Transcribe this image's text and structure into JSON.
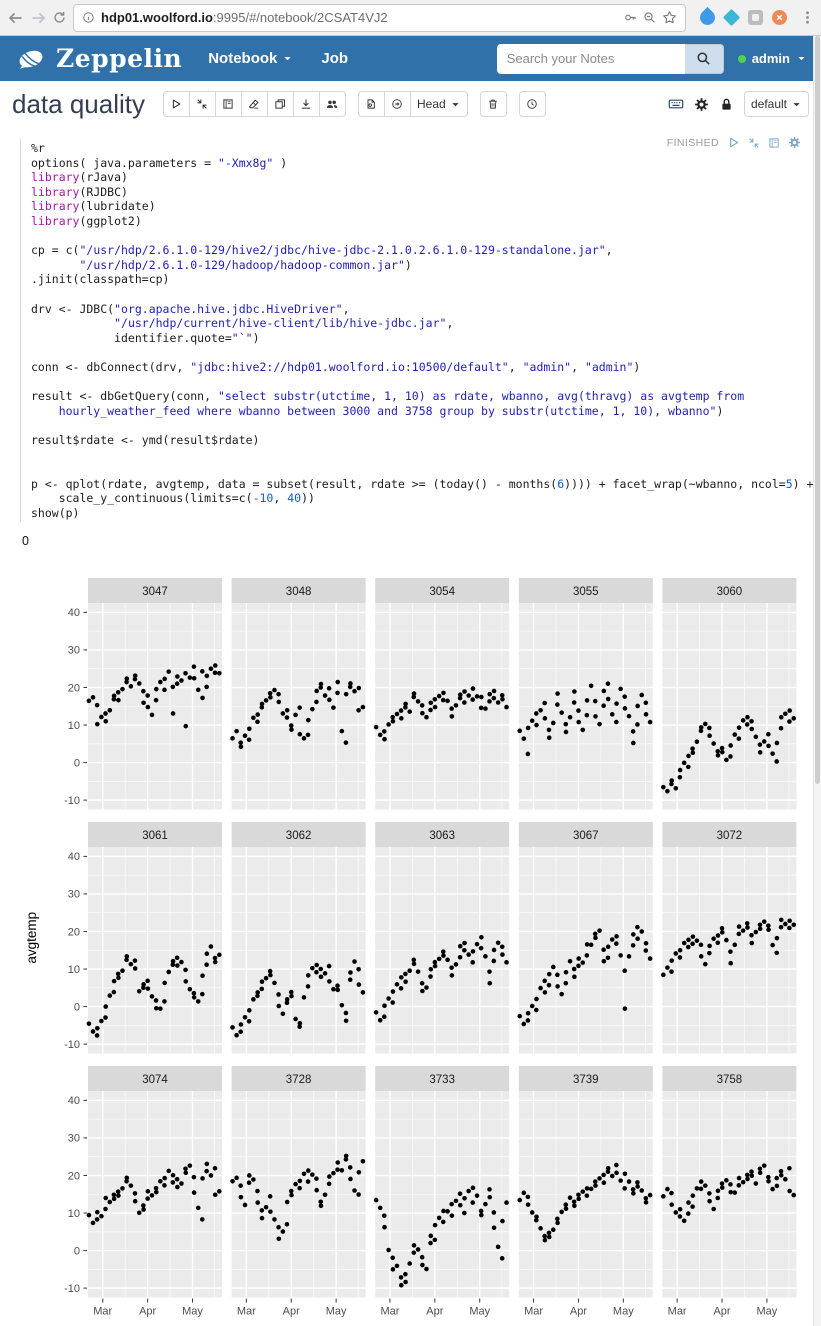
{
  "browser": {
    "url_host": "hdp01.woolford.io",
    "url_rest": ":9995/#/notebook/2CSAT4VJ2"
  },
  "navbar": {
    "brand": "Zeppelin",
    "menus": [
      {
        "label": "Notebook"
      },
      {
        "label": "Job"
      }
    ],
    "search_placeholder": "Search your Notes",
    "user": "admin",
    "color": "#3071a9"
  },
  "note": {
    "title": "data quality",
    "revision": "Head",
    "interpreter": "default"
  },
  "paragraph": {
    "status": "FINISHED",
    "result_prefix": "0",
    "token_colors": {
      "pl": "#1c1c1c",
      "kw": "#a617a6",
      "st": "#1f1fb4",
      "nu": "#0b5bd3"
    },
    "code_lines": [
      [
        [
          "pl",
          "%r"
        ]
      ],
      [
        [
          "pl",
          "options( java.parameters = "
        ],
        [
          "st",
          "\"-Xmx8g\""
        ],
        [
          "pl",
          " )"
        ]
      ],
      [
        [
          "kw",
          "library"
        ],
        [
          "pl",
          "(rJava)"
        ]
      ],
      [
        [
          "kw",
          "library"
        ],
        [
          "pl",
          "(RJDBC)"
        ]
      ],
      [
        [
          "kw",
          "library"
        ],
        [
          "pl",
          "(lubridate)"
        ]
      ],
      [
        [
          "kw",
          "library"
        ],
        [
          "pl",
          "(ggplot2)"
        ]
      ],
      [],
      [
        [
          "pl",
          "cp = c("
        ],
        [
          "st",
          "\"/usr/hdp/2.6.1.0-129/hive2/jdbc/hive-jdbc-2.1.0.2.6.1.0-129-standalone.jar\""
        ],
        [
          "pl",
          ","
        ]
      ],
      [
        [
          "pl",
          "       "
        ],
        [
          "st",
          "\"/usr/hdp/2.6.1.0-129/hadoop/hadoop-common.jar\""
        ],
        [
          "pl",
          ")"
        ]
      ],
      [
        [
          "pl",
          ".jinit(classpath=cp)"
        ]
      ],
      [],
      [
        [
          "pl",
          "drv <- JDBC("
        ],
        [
          "st",
          "\"org.apache.hive.jdbc.HiveDriver\""
        ],
        [
          "pl",
          ","
        ]
      ],
      [
        [
          "pl",
          "            "
        ],
        [
          "st",
          "\"/usr/hdp/current/hive-client/lib/hive-jdbc.jar\""
        ],
        [
          "pl",
          ","
        ]
      ],
      [
        [
          "pl",
          "            identifier.quote="
        ],
        [
          "st",
          "\"`\""
        ],
        [
          "pl",
          ")"
        ]
      ],
      [],
      [
        [
          "pl",
          "conn <- dbConnect(drv, "
        ],
        [
          "st",
          "\"jdbc:hive2://hdp01.woolford.io:10500/default\""
        ],
        [
          "pl",
          ", "
        ],
        [
          "st",
          "\"admin\""
        ],
        [
          "pl",
          ", "
        ],
        [
          "st",
          "\"admin\""
        ],
        [
          "pl",
          ")"
        ]
      ],
      [],
      [
        [
          "pl",
          "result <- dbGetQuery(conn, "
        ],
        [
          "st",
          "\"select substr(utctime, 1, 10) as rdate, wbanno, avg(thravg) as avgtemp from"
        ]
      ],
      [
        [
          "st",
          "    hourly_weather_feed where wbanno between 3000 and 3758 group by substr(utctime, 1, 10), wbanno\""
        ],
        [
          "pl",
          ")"
        ]
      ],
      [],
      [
        [
          "pl",
          "result$rdate <- ymd(result$rdate)"
        ]
      ],
      [],
      [],
      [
        [
          "pl",
          "p <- qplot(rdate, avgtemp, data = subset(result, rdate >= (today() - months("
        ],
        [
          "nu",
          "6"
        ],
        [
          "pl",
          ")))) + facet_wrap(~wbanno, ncol="
        ],
        [
          "nu",
          "5"
        ],
        [
          "pl",
          ") +"
        ]
      ],
      [
        [
          "pl",
          "    scale_y_continuous(limits=c("
        ],
        [
          "nu",
          "-10"
        ],
        [
          "pl",
          ", "
        ],
        [
          "nu",
          "40"
        ],
        [
          "pl",
          "))"
        ]
      ],
      [
        [
          "pl",
          "show(p)"
        ]
      ]
    ]
  },
  "chart_data": {
    "type": "scatter",
    "facet_by": "wbanno",
    "ncol": 5,
    "ylabel": "avgtemp",
    "ylim": [
      -10,
      40
    ],
    "yticks": [
      40,
      30,
      20,
      10,
      0,
      -10
    ],
    "yticks_minor": [
      35,
      25,
      15,
      5,
      -5
    ],
    "xticks": [
      "Mar",
      "Apr",
      "May"
    ],
    "xtick_pos_pct": [
      11,
      44.5,
      78
    ],
    "xtick_minor_pct": [
      27.75,
      61.25,
      94.5
    ],
    "x_pct_range": [
      2,
      98
    ],
    "grid": true,
    "point_color": "#000000",
    "panel_bg": "#ebebeb",
    "strip_bg": "#d9d9d9",
    "axis_text_color": "#4d4d4d",
    "facets": [
      {
        "label": "3047",
        "y": [
          16,
          17,
          15,
          10,
          12,
          13,
          11,
          14,
          17,
          18,
          19,
          17,
          20,
          21,
          22,
          20,
          22,
          23,
          21,
          19,
          16,
          18,
          15,
          13,
          17,
          20,
          21,
          19,
          22,
          24,
          20,
          13,
          21,
          23,
          22,
          24,
          10,
          23,
          26,
          22,
          19,
          24,
          17,
          20,
          23,
          25,
          24,
          26,
          24
        ]
      },
      {
        "label": "3048",
        "y": [
          6,
          8,
          5,
          4,
          7,
          6,
          9,
          12,
          11,
          13,
          15,
          16,
          17,
          18,
          17,
          19,
          18,
          16,
          13,
          12,
          14,
          10,
          9,
          13,
          15,
          8,
          6,
          7,
          11,
          14,
          16,
          19,
          20,
          21,
          18,
          20,
          17,
          15,
          19,
          21,
          8,
          5,
          18,
          20,
          21,
          19,
          14,
          20,
          15
        ]
      },
      {
        "label": "3054",
        "y": [
          9,
          7,
          8,
          6,
          10,
          12,
          11,
          13,
          14,
          12,
          15,
          16,
          14,
          17,
          18,
          16,
          15,
          13,
          12,
          14,
          16,
          17,
          15,
          18,
          17,
          19,
          16,
          14,
          12,
          15,
          17,
          18,
          16,
          19,
          18,
          17,
          20,
          18,
          15,
          17,
          14,
          16,
          18,
          17,
          19,
          16,
          18,
          17,
          15
        ]
      },
      {
        "label": "3055",
        "y": [
          8,
          6,
          2,
          9,
          11,
          13,
          10,
          14,
          16,
          12,
          9,
          7,
          11,
          15,
          18,
          13,
          10,
          8,
          12,
          16,
          19,
          14,
          11,
          9,
          13,
          17,
          20,
          16,
          12,
          10,
          15,
          19,
          21,
          17,
          13,
          11,
          16,
          20,
          18,
          14,
          12,
          8,
          5,
          10,
          15,
          18,
          16,
          13,
          11
        ]
      },
      {
        "label": "3060",
        "y": [
          -7,
          -8,
          -6,
          -5,
          -7,
          -4,
          -2,
          0,
          -1,
          2,
          4,
          3,
          6,
          8,
          9,
          10,
          9,
          7,
          5,
          3,
          2,
          4,
          3,
          1,
          2,
          5,
          7,
          6,
          9,
          11,
          10,
          12,
          11,
          9,
          7,
          5,
          3,
          6,
          8,
          4,
          2,
          0,
          5,
          9,
          12,
          13,
          11,
          14,
          12
        ]
      },
      {
        "label": "3061",
        "y": [
          -5,
          -7,
          -8,
          -6,
          -4,
          -3,
          0,
          3,
          4,
          7,
          9,
          8,
          10,
          12,
          13,
          11,
          12,
          10,
          4,
          5,
          6,
          7,
          5,
          3,
          2,
          0,
          -1,
          1,
          6,
          9,
          11,
          12,
          13,
          11,
          12,
          10,
          7,
          5,
          4,
          2,
          1,
          3,
          8,
          11,
          14,
          16,
          13,
          12,
          14
        ]
      },
      {
        "label": "3062",
        "y": [
          -6,
          -8,
          -7,
          -5,
          -3,
          -4,
          -1,
          2,
          3,
          4,
          5,
          7,
          8,
          9,
          8,
          6,
          3,
          0,
          -2,
          1,
          2,
          4,
          3,
          -3,
          -5,
          -4,
          2,
          5,
          8,
          10,
          9,
          11,
          10,
          8,
          9,
          11,
          7,
          5,
          6,
          4,
          0,
          -2,
          -4,
          7,
          9,
          12,
          10,
          6,
          4
        ]
      },
      {
        "label": "3063",
        "y": [
          -2,
          -4,
          -3,
          0,
          2,
          1,
          4,
          6,
          5,
          8,
          9,
          7,
          10,
          12,
          11,
          9,
          6,
          4,
          5,
          8,
          10,
          12,
          11,
          13,
          15,
          14,
          12,
          10,
          8,
          11,
          13,
          16,
          15,
          17,
          14,
          12,
          15,
          17,
          16,
          18,
          13,
          9,
          6,
          12,
          15,
          17,
          16,
          14,
          12
        ]
      },
      {
        "label": "3067",
        "y": [
          -3,
          -5,
          -4,
          -2,
          0,
          -1,
          2,
          5,
          7,
          4,
          6,
          9,
          11,
          8,
          5,
          3,
          6,
          9,
          12,
          10,
          8,
          11,
          13,
          12,
          14,
          17,
          16,
          19,
          18,
          20,
          15,
          12,
          13,
          16,
          18,
          17,
          19,
          14,
          10,
          -1,
          13,
          16,
          19,
          21,
          18,
          20,
          15,
          17,
          13
        ]
      },
      {
        "label": "3072",
        "y": [
          8,
          10,
          9,
          12,
          14,
          13,
          15,
          17,
          16,
          18,
          17,
          19,
          18,
          16,
          13,
          11,
          14,
          16,
          18,
          17,
          19,
          21,
          20,
          18,
          15,
          12,
          16,
          19,
          21,
          20,
          22,
          21,
          19,
          17,
          20,
          22,
          21,
          23,
          22,
          20,
          16,
          14,
          18,
          21,
          23,
          22,
          21,
          23,
          22
        ]
      },
      {
        "label": "3074",
        "y": [
          9,
          7,
          8,
          10,
          9,
          11,
          14,
          13,
          15,
          14,
          16,
          15,
          17,
          18,
          19,
          17,
          15,
          13,
          10,
          12,
          11,
          14,
          16,
          15,
          17,
          16,
          18,
          17,
          19,
          21,
          18,
          20,
          19,
          17,
          18,
          22,
          21,
          23,
          20,
          15,
          11,
          8,
          19,
          21,
          23,
          20,
          22,
          15,
          16
        ]
      },
      {
        "label": "3728",
        "y": [
          18,
          19,
          17,
          14,
          12,
          18,
          20,
          19,
          16,
          13,
          11,
          9,
          12,
          14,
          10,
          8,
          6,
          3,
          5,
          7,
          13,
          16,
          15,
          18,
          17,
          19,
          20,
          18,
          21,
          20,
          19,
          16,
          13,
          12,
          15,
          18,
          20,
          21,
          22,
          23,
          21,
          24,
          25,
          22,
          19,
          16,
          15,
          21,
          24
        ]
      },
      {
        "label": "3733",
        "y": [
          13,
          11,
          9,
          6,
          0,
          -2,
          -5,
          -4,
          -7,
          -9,
          -6,
          -8,
          -3,
          -1,
          1,
          0,
          -2,
          -4,
          -5,
          2,
          4,
          3,
          7,
          9,
          8,
          11,
          10,
          12,
          9,
          13,
          15,
          12,
          10,
          14,
          16,
          13,
          17,
          15,
          11,
          9,
          12,
          16,
          14,
          10,
          6,
          1,
          -2,
          8,
          13
        ]
      },
      {
        "label": "3739",
        "y": [
          13,
          15,
          14,
          12,
          10,
          8,
          9,
          6,
          4,
          3,
          5,
          4,
          6,
          8,
          7,
          10,
          12,
          11,
          14,
          13,
          12,
          15,
          14,
          16,
          15,
          17,
          16,
          18,
          17,
          19,
          20,
          18,
          21,
          22,
          20,
          23,
          21,
          19,
          17,
          20,
          18,
          16,
          15,
          18,
          17,
          16,
          14,
          13,
          15
        ]
      },
      {
        "label": "3758",
        "y": [
          14,
          16,
          15,
          12,
          10,
          9,
          11,
          8,
          10,
          13,
          12,
          15,
          17,
          16,
          18,
          17,
          15,
          13,
          11,
          14,
          16,
          18,
          17,
          19,
          18,
          16,
          15,
          17,
          19,
          18,
          20,
          19,
          21,
          20,
          18,
          22,
          21,
          23,
          20,
          18,
          16,
          19,
          17,
          21,
          20,
          19,
          22,
          16,
          15
        ]
      }
    ]
  }
}
